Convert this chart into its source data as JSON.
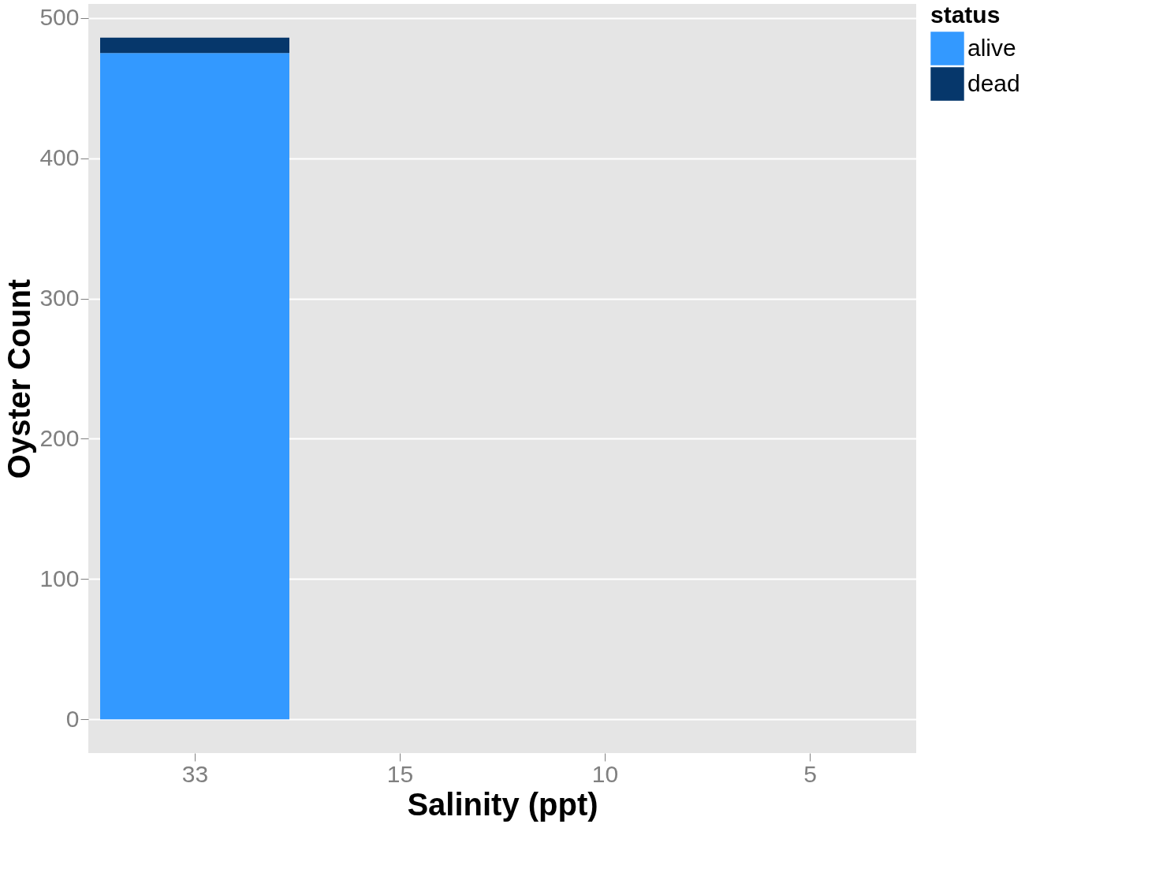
{
  "chart_data": {
    "type": "bar",
    "stacked": true,
    "xlabel": "Salinity (ppt)",
    "ylabel": "Oyster Count",
    "legend_title": "status",
    "categories": [
      "33",
      "15",
      "10",
      "5"
    ],
    "series": [
      {
        "name": "alive",
        "color": "#3399ff",
        "values": [
          475,
          null,
          null,
          null
        ]
      },
      {
        "name": "dead",
        "color": "#06376b",
        "values": [
          11,
          null,
          null,
          null
        ]
      }
    ],
    "ylim": [
      -24,
      510
    ],
    "yticks": [
      0,
      100,
      200,
      300,
      400,
      500
    ],
    "grid": "y",
    "legend": "right"
  }
}
